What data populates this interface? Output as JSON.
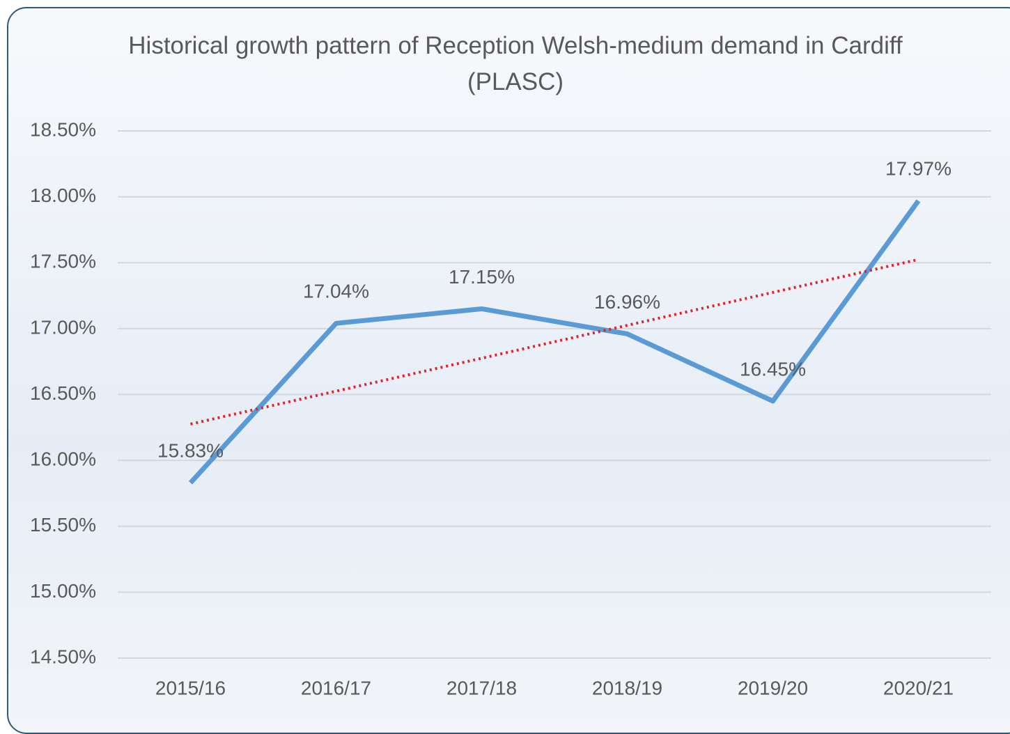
{
  "chart_data": {
    "type": "line",
    "title": "Historical growth pattern of Reception Welsh-medium demand in Cardiff (PLASC)",
    "categories": [
      "2015/16",
      "2016/17",
      "2017/18",
      "2018/19",
      "2019/20",
      "2020/21"
    ],
    "series": [
      {
        "color": "#5b9bd5",
        "values": [
          15.83,
          17.04,
          17.15,
          16.96,
          16.45,
          17.97
        ],
        "value_labels": [
          "15.83%",
          "17.04%",
          "17.15%",
          "16.96%",
          "16.45%",
          "17.97%"
        ]
      }
    ],
    "trendline": {
      "kind": "linear",
      "color": "#e0242a"
    },
    "ylim": [
      14.5,
      18.5
    ],
    "yticks": [
      {
        "value": 14.5,
        "label": "14.50%"
      },
      {
        "value": 15,
        "label": "15.00%"
      },
      {
        "value": 15.5,
        "label": "15.50%"
      },
      {
        "value": 16,
        "label": "16.00%"
      },
      {
        "value": 16.5,
        "label": "16.50%"
      },
      {
        "value": 17,
        "label": "17.00%"
      },
      {
        "value": 17.5,
        "label": "17.50%"
      },
      {
        "value": 18,
        "label": "18.00%"
      },
      {
        "value": 18.5,
        "label": "18.50%"
      }
    ],
    "grid": true
  }
}
